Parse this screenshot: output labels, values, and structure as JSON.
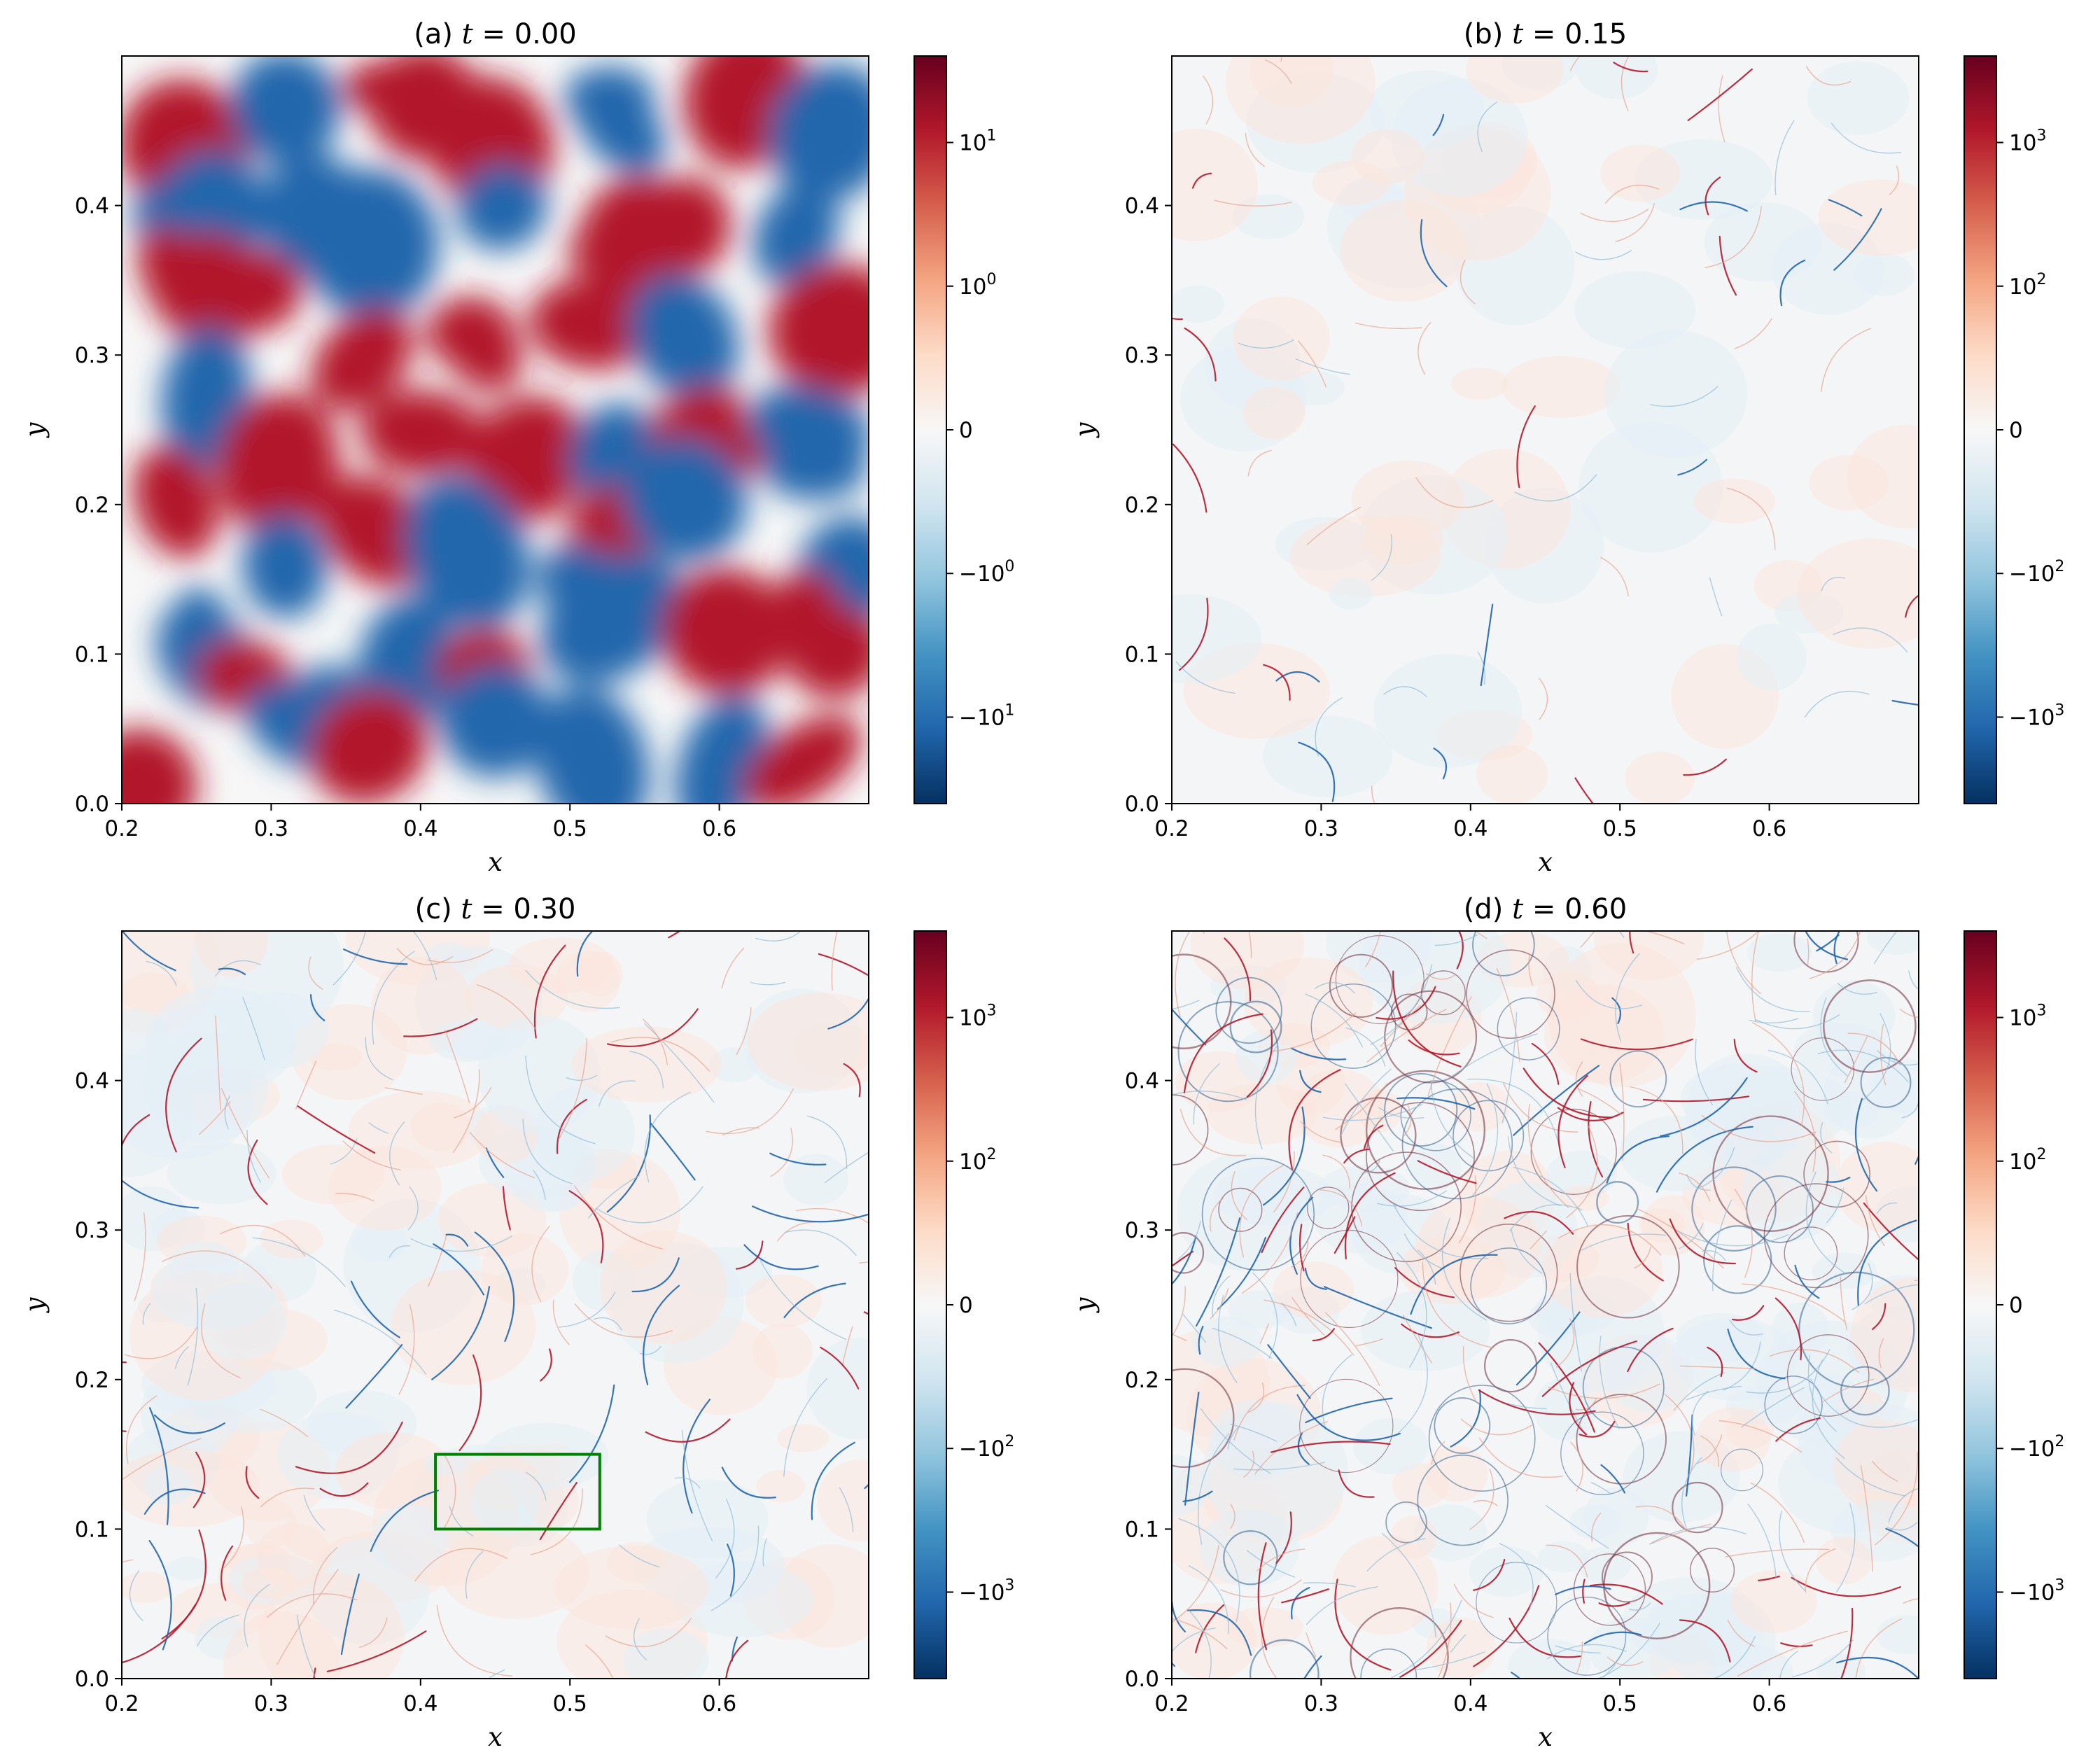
{
  "chart_data": [
    {
      "type": "heatmap",
      "title_prefix": "(a) ",
      "title_var": "t",
      "title_eq": " = 0.00",
      "xlabel": "x",
      "ylabel": "y",
      "xlim": [
        0.2,
        0.7
      ],
      "ylim": [
        0.0,
        0.5
      ],
      "xticks": [
        "0.2",
        "0.3",
        "0.4",
        "0.5",
        "0.6"
      ],
      "yticks": [
        "0.0",
        "0.1",
        "0.2",
        "0.3",
        "0.4"
      ],
      "colorbar": {
        "scale": "symlog",
        "ticks": [
          {
            "base": "10",
            "exp": "1",
            "label": "",
            "value": 10
          },
          {
            "base": "10",
            "exp": "0",
            "label": "",
            "value": 1
          },
          {
            "base": "",
            "exp": "",
            "label": "0",
            "value": 0
          },
          {
            "base": "−10",
            "exp": "0",
            "label": "",
            "value": -1
          },
          {
            "base": "−10",
            "exp": "1",
            "label": "",
            "value": -10
          }
        ]
      },
      "pattern": "smooth-blobs"
    },
    {
      "type": "heatmap",
      "title_prefix": "(b) ",
      "title_var": "t",
      "title_eq": " = 0.15",
      "xlabel": "x",
      "ylabel": "y",
      "xlim": [
        0.2,
        0.7
      ],
      "ylim": [
        0.0,
        0.5
      ],
      "xticks": [
        "0.2",
        "0.3",
        "0.4",
        "0.5",
        "0.6"
      ],
      "yticks": [
        "0.0",
        "0.1",
        "0.2",
        "0.3",
        "0.4"
      ],
      "colorbar": {
        "scale": "symlog",
        "ticks": [
          {
            "base": "10",
            "exp": "3",
            "label": "",
            "value": 1000
          },
          {
            "base": "10",
            "exp": "2",
            "label": "",
            "value": 100
          },
          {
            "base": "",
            "exp": "",
            "label": "0",
            "value": 0
          },
          {
            "base": "−10",
            "exp": "2",
            "label": "",
            "value": -100
          },
          {
            "base": "−10",
            "exp": "3",
            "label": "",
            "value": -1000
          }
        ]
      },
      "pattern": "sparse-filaments"
    },
    {
      "type": "heatmap",
      "title_prefix": "(c) ",
      "title_var": "t",
      "title_eq": " = 0.30",
      "xlabel": "x",
      "ylabel": "y",
      "xlim": [
        0.2,
        0.7
      ],
      "ylim": [
        0.0,
        0.5
      ],
      "xticks": [
        "0.2",
        "0.3",
        "0.4",
        "0.5",
        "0.6"
      ],
      "yticks": [
        "0.0",
        "0.1",
        "0.2",
        "0.3",
        "0.4"
      ],
      "colorbar": {
        "scale": "symlog",
        "ticks": [
          {
            "base": "10",
            "exp": "3",
            "label": "",
            "value": 1000
          },
          {
            "base": "10",
            "exp": "2",
            "label": "",
            "value": 100
          },
          {
            "base": "",
            "exp": "",
            "label": "0",
            "value": 0
          },
          {
            "base": "−10",
            "exp": "2",
            "label": "",
            "value": -100
          },
          {
            "base": "−10",
            "exp": "3",
            "label": "",
            "value": -1000
          }
        ]
      },
      "pattern": "filaments",
      "highlight_box": {
        "x0": 0.41,
        "x1": 0.52,
        "y0": 0.1,
        "y1": 0.15,
        "color": "#008000"
      }
    },
    {
      "type": "heatmap",
      "title_prefix": "(d) ",
      "title_var": "t",
      "title_eq": " = 0.60",
      "xlabel": "x",
      "ylabel": "y",
      "xlim": [
        0.2,
        0.7
      ],
      "ylim": [
        0.0,
        0.5
      ],
      "xticks": [
        "0.2",
        "0.3",
        "0.4",
        "0.5",
        "0.6"
      ],
      "yticks": [
        "0.0",
        "0.1",
        "0.2",
        "0.3",
        "0.4"
      ],
      "colorbar": {
        "scale": "symlog",
        "ticks": [
          {
            "base": "10",
            "exp": "3",
            "label": "",
            "value": 1000
          },
          {
            "base": "10",
            "exp": "2",
            "label": "",
            "value": 100
          },
          {
            "base": "",
            "exp": "",
            "label": "0",
            "value": 0
          },
          {
            "base": "−10",
            "exp": "2",
            "label": "",
            "value": -100
          },
          {
            "base": "−10",
            "exp": "3",
            "label": "",
            "value": -1000
          }
        ]
      },
      "pattern": "dense-vortices"
    }
  ],
  "colormap": {
    "name": "RdBu_r",
    "stops": [
      "#053061",
      "#2166ac",
      "#4393c3",
      "#92c5de",
      "#d1e5f0",
      "#f7f7f7",
      "#fddbc7",
      "#f4a582",
      "#d6604d",
      "#b2182b",
      "#67001f"
    ]
  }
}
